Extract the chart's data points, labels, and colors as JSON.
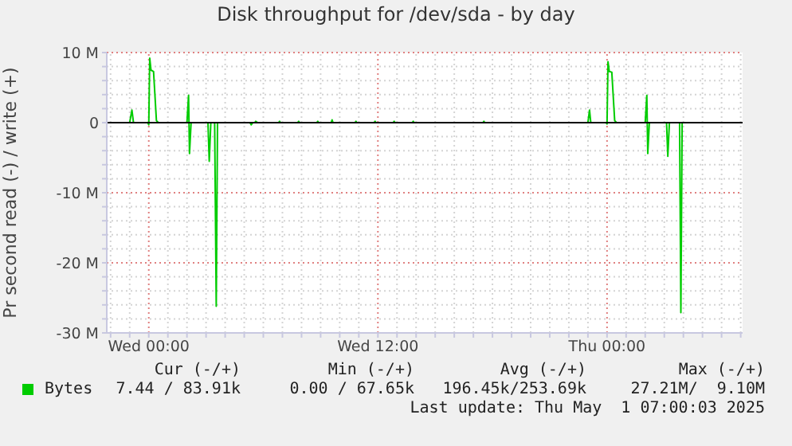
{
  "chart_data": {
    "type": "line",
    "title": "Disk throughput for /dev/sda - by day",
    "ylabel": "Pr second read (-) / write (+)",
    "x": [
      "2025-04-29T21:48",
      "2025-04-29T23:00",
      "2025-04-29T23:07",
      "2025-04-29T23:12",
      "2025-04-29T23:57",
      "2025-04-30T00:00",
      "2025-04-30T00:03",
      "2025-04-30T00:07",
      "2025-04-30T00:15",
      "2025-04-30T00:24",
      "2025-04-30T00:30",
      "2025-04-30T02:00",
      "2025-04-30T02:05",
      "2025-04-30T02:08",
      "2025-04-30T02:13",
      "2025-04-30T03:06",
      "2025-04-30T03:10",
      "2025-04-30T03:15",
      "2025-04-30T03:27",
      "2025-04-30T03:32",
      "2025-04-30T03:36",
      "2025-04-30T05:18",
      "2025-04-30T05:22",
      "2025-04-30T05:27",
      "2025-04-30T05:33",
      "2025-04-30T05:36",
      "2025-04-30T05:42",
      "2025-04-30T06:48",
      "2025-04-30T06:51",
      "2025-04-30T06:54",
      "2025-04-30T07:48",
      "2025-04-30T07:51",
      "2025-04-30T07:54",
      "2025-04-30T08:48",
      "2025-04-30T08:51",
      "2025-04-30T08:54",
      "2025-04-30T09:33",
      "2025-04-30T09:36",
      "2025-04-30T09:39",
      "2025-04-30T10:48",
      "2025-04-30T10:51",
      "2025-04-30T10:54",
      "2025-04-30T11:48",
      "2025-04-30T11:51",
      "2025-04-30T11:54",
      "2025-04-30T12:48",
      "2025-04-30T12:51",
      "2025-04-30T12:54",
      "2025-04-30T13:48",
      "2025-04-30T13:51",
      "2025-04-30T13:54",
      "2025-04-30T17:30",
      "2025-04-30T17:33",
      "2025-04-30T17:36",
      "2025-04-30T23:00",
      "2025-04-30T23:05",
      "2025-04-30T23:09",
      "2025-04-30T23:57",
      "2025-05-01T00:00",
      "2025-05-01T00:03",
      "2025-05-01T00:07",
      "2025-05-01T00:15",
      "2025-05-01T00:24",
      "2025-05-01T00:30",
      "2025-05-01T02:00",
      "2025-05-01T02:05",
      "2025-05-01T02:08",
      "2025-05-01T02:13",
      "2025-05-01T03:07",
      "2025-05-01T03:11",
      "2025-05-01T03:16",
      "2025-05-01T03:48",
      "2025-05-01T03:52",
      "2025-05-01T03:56",
      "2025-05-01T07:03"
    ],
    "series": [
      {
        "name": "Bytes",
        "color": "#00cc00",
        "values": [
          0,
          0,
          1800000,
          0,
          0,
          -300000,
          9200000,
          7500000,
          7300000,
          300000,
          0,
          0,
          3900000,
          -4400000,
          0,
          0,
          -5500000,
          0,
          0,
          -26200000,
          0,
          0,
          -300000,
          0,
          0,
          200000,
          0,
          0,
          200000,
          0,
          0,
          200000,
          0,
          0,
          200000,
          0,
          0,
          400000,
          0,
          0,
          200000,
          0,
          0,
          200000,
          0,
          0,
          200000,
          0,
          0,
          200000,
          0,
          0,
          200000,
          0,
          0,
          1800000,
          0,
          0,
          -200000,
          8700000,
          7300000,
          7200000,
          300000,
          0,
          0,
          3900000,
          -4400000,
          0,
          0,
          -4800000,
          0,
          0,
          -27100000,
          0,
          0
        ]
      }
    ],
    "xlim": [
      "2025-04-29T21:48",
      "2025-05-01T07:06"
    ],
    "xticks": [
      {
        "value": "2025-04-29T22:00",
        "label": null
      },
      {
        "value": "2025-04-29T23:00",
        "label": null
      },
      {
        "value": "2025-04-30T00:00",
        "label": "Wed 00:00"
      },
      {
        "value": "2025-04-30T01:00",
        "label": null
      },
      {
        "value": "2025-04-30T02:00",
        "label": null
      },
      {
        "value": "2025-04-30T03:00",
        "label": null
      },
      {
        "value": "2025-04-30T04:00",
        "label": null
      },
      {
        "value": "2025-04-30T05:00",
        "label": null
      },
      {
        "value": "2025-04-30T06:00",
        "label": null
      },
      {
        "value": "2025-04-30T07:00",
        "label": null
      },
      {
        "value": "2025-04-30T08:00",
        "label": null
      },
      {
        "value": "2025-04-30T09:00",
        "label": null
      },
      {
        "value": "2025-04-30T10:00",
        "label": null
      },
      {
        "value": "2025-04-30T11:00",
        "label": null
      },
      {
        "value": "2025-04-30T12:00",
        "label": "Wed 12:00"
      },
      {
        "value": "2025-04-30T13:00",
        "label": null
      },
      {
        "value": "2025-04-30T14:00",
        "label": null
      },
      {
        "value": "2025-04-30T15:00",
        "label": null
      },
      {
        "value": "2025-04-30T16:00",
        "label": null
      },
      {
        "value": "2025-04-30T17:00",
        "label": null
      },
      {
        "value": "2025-04-30T18:00",
        "label": null
      },
      {
        "value": "2025-04-30T19:00",
        "label": null
      },
      {
        "value": "2025-04-30T20:00",
        "label": null
      },
      {
        "value": "2025-04-30T21:00",
        "label": null
      },
      {
        "value": "2025-04-30T22:00",
        "label": null
      },
      {
        "value": "2025-04-30T23:00",
        "label": null
      },
      {
        "value": "2025-05-01T00:00",
        "label": "Thu 00:00"
      },
      {
        "value": "2025-05-01T01:00",
        "label": null
      },
      {
        "value": "2025-05-01T02:00",
        "label": null
      },
      {
        "value": "2025-05-01T03:00",
        "label": null
      },
      {
        "value": "2025-05-01T04:00",
        "label": null
      },
      {
        "value": "2025-05-01T05:00",
        "label": null
      },
      {
        "value": "2025-05-01T06:00",
        "label": null
      },
      {
        "value": "2025-05-01T07:00",
        "label": null
      }
    ],
    "ylim": [
      -30000000,
      10000000
    ],
    "yticks": [
      {
        "value": -30000000,
        "label": "-30 M"
      },
      {
        "value": -28000000,
        "label": null
      },
      {
        "value": -26000000,
        "label": null
      },
      {
        "value": -24000000,
        "label": null
      },
      {
        "value": -22000000,
        "label": null
      },
      {
        "value": -20000000,
        "label": "-20 M"
      },
      {
        "value": -18000000,
        "label": null
      },
      {
        "value": -16000000,
        "label": null
      },
      {
        "value": -14000000,
        "label": null
      },
      {
        "value": -12000000,
        "label": null
      },
      {
        "value": -10000000,
        "label": "-10 M"
      },
      {
        "value": -8000000,
        "label": null
      },
      {
        "value": -6000000,
        "label": null
      },
      {
        "value": -4000000,
        "label": null
      },
      {
        "value": -2000000,
        "label": null
      },
      {
        "value": 0,
        "label": "0"
      },
      {
        "value": 2000000,
        "label": null
      },
      {
        "value": 4000000,
        "label": null
      },
      {
        "value": 6000000,
        "label": null
      },
      {
        "value": 8000000,
        "label": null
      },
      {
        "value": 10000000,
        "label": "10 M"
      }
    ],
    "grid": true,
    "legend": "bottom left",
    "marker": "none",
    "line_style": "solid",
    "ref_lines": [
      {
        "axis": "y",
        "value": 0,
        "color": "#000000"
      }
    ],
    "annotations": [
      "Cur (-/+)",
      "Min (-/+)",
      "Avg (-/+)",
      "Max (-/+)",
      "7.44 / 83.91k",
      "0.00 / 67.65k",
      "196.45k/253.69k",
      "27.21M/  9.10M",
      "Last update: Thu May  1 07:00:03 2025"
    ]
  }
}
